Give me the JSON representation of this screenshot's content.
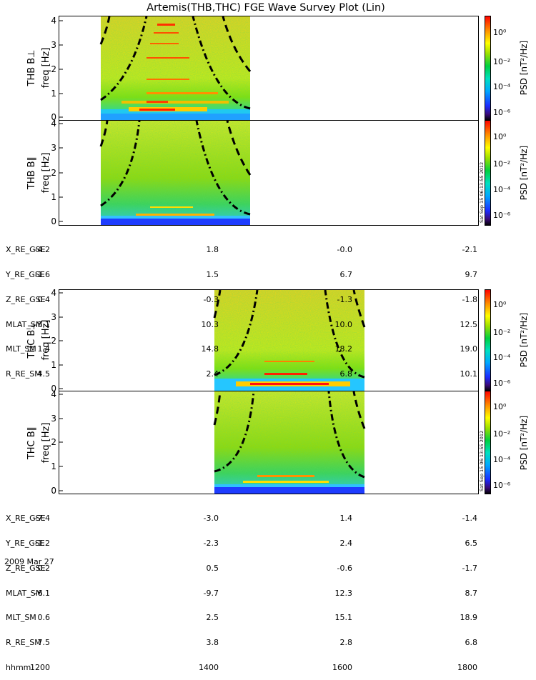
{
  "title": "Artemis(THB,THC) FGE Wave Survey Plot (Lin)",
  "panels": [
    {
      "id": "thb-bperp",
      "probe": "THB",
      "ylabel_probe": "THB B⊥",
      "ylabel_unit": "freq [Hz]",
      "y_ticks": [
        "0",
        "1",
        "2",
        "3",
        "4"
      ],
      "ylim": [
        0,
        4
      ],
      "data_window": [
        "1200",
        "~1340"
      ],
      "colorbar": {
        "ticks": [
          "10⁰",
          "10⁻²",
          "10⁻⁴",
          "10⁻⁶"
        ],
        "label": "PSD [nT²/Hz]"
      }
    },
    {
      "id": "thb-bpar",
      "probe": "THB",
      "ylabel_probe": "THB B∥",
      "ylabel_unit": "freq [Hz]",
      "y_ticks": [
        "0",
        "1",
        "2",
        "3",
        "4"
      ],
      "ylim": [
        0,
        4
      ],
      "data_window": [
        "1200",
        "~1340"
      ],
      "colorbar": {
        "ticks": [
          "10⁰",
          "10⁻²",
          "10⁻⁴",
          "10⁻⁶"
        ],
        "label": "PSD [nT²/Hz]"
      },
      "timestamp": "Sat Sep 15 06:13:55 2012"
    },
    {
      "id": "thc-bperp",
      "probe": "THC",
      "ylabel_probe": "THC B⊥",
      "ylabel_unit": "freq [Hz]",
      "y_ticks": [
        "0",
        "1",
        "2",
        "3",
        "4"
      ],
      "ylim": [
        0,
        4
      ],
      "data_window": [
        "~1410",
        "~1535"
      ],
      "colorbar": {
        "ticks": [
          "10⁰",
          "10⁻²",
          "10⁻⁴",
          "10⁻⁶"
        ],
        "label": "PSD [nT²/Hz]"
      }
    },
    {
      "id": "thc-bpar",
      "probe": "THC",
      "ylabel_probe": "THC B∥",
      "ylabel_unit": "freq [Hz]",
      "y_ticks": [
        "0",
        "1",
        "2",
        "3",
        "4"
      ],
      "ylim": [
        0,
        4
      ],
      "data_window": [
        "~1410",
        "~1535"
      ],
      "colorbar": {
        "ticks": [
          "10⁰",
          "10⁻²",
          "10⁻⁴",
          "10⁻⁶"
        ],
        "label": "PSD [nT²/Hz]"
      },
      "timestamp": "Sat Sep 15 06:13:55 2012"
    }
  ],
  "ephem_top": {
    "rows": [
      {
        "label": "X_RE_GSE",
        "values": [
          "-4.2",
          "1.8",
          "-0.0",
          "-2.1"
        ]
      },
      {
        "label": "Y_RE_GSE",
        "values": [
          "-1.6",
          "1.5",
          "6.7",
          "9.7"
        ]
      },
      {
        "label": "Z_RE_GSE",
        "values": [
          "0.4",
          "-0.3",
          "-1.3",
          "-1.8"
        ]
      },
      {
        "label": "MLAT_SM",
        "values": [
          "-5.1",
          "10.3",
          "10.0",
          "12.5"
        ]
      },
      {
        "label": "MLT_SM",
        "values": [
          "1.4",
          "14.8",
          "18.2",
          "19.0"
        ]
      },
      {
        "label": "R_RE_SM",
        "values": [
          "4.5",
          "2.4",
          "6.8",
          "10.1"
        ]
      }
    ]
  },
  "ephem_bottom": {
    "rows": [
      {
        "label": "X_RE_GSE",
        "values": [
          "-7.4",
          "-3.0",
          "1.4",
          "-1.4"
        ]
      },
      {
        "label": "Y_RE_GSE",
        "values": [
          "-1.2",
          "-2.3",
          "2.4",
          "6.5"
        ]
      },
      {
        "label": "Z_RE_GSE",
        "values": [
          "0.2",
          "0.5",
          "-0.6",
          "-1.7"
        ]
      },
      {
        "label": "MLAT_SM",
        "values": [
          "-6.1",
          "-9.7",
          "12.3",
          "8.7"
        ]
      },
      {
        "label": "MLT_SM",
        "values": [
          "0.6",
          "2.5",
          "15.1",
          "18.9"
        ]
      },
      {
        "label": "R_RE_SM",
        "values": [
          "7.5",
          "3.8",
          "2.8",
          "6.8"
        ]
      },
      {
        "label": "hhmm",
        "values": [
          "1200",
          "1400",
          "1600",
          "1800"
        ]
      }
    ]
  },
  "date": "2009 Mar 27",
  "chart_data": {
    "type": "heatmap",
    "title": "Artemis(THB,THC) FGE Wave Survey Plot (Lin)",
    "x_axis": {
      "label": "hhmm",
      "ticks": [
        "1200",
        "1400",
        "1600",
        "1800"
      ]
    },
    "y_axis": {
      "label": "freq [Hz]",
      "range": [
        0,
        4
      ]
    },
    "color_scale": {
      "label": "PSD [nT²/Hz]",
      "scale": "log",
      "range": [
        "10⁻⁶",
        "10⁰"
      ]
    },
    "series": [
      {
        "name": "THB B⊥"
      },
      {
        "name": "THB B∥"
      },
      {
        "name": "THC B⊥"
      },
      {
        "name": "THC B∥"
      }
    ]
  },
  "colors": {
    "black": "#000000",
    "white": "#ffffff"
  }
}
